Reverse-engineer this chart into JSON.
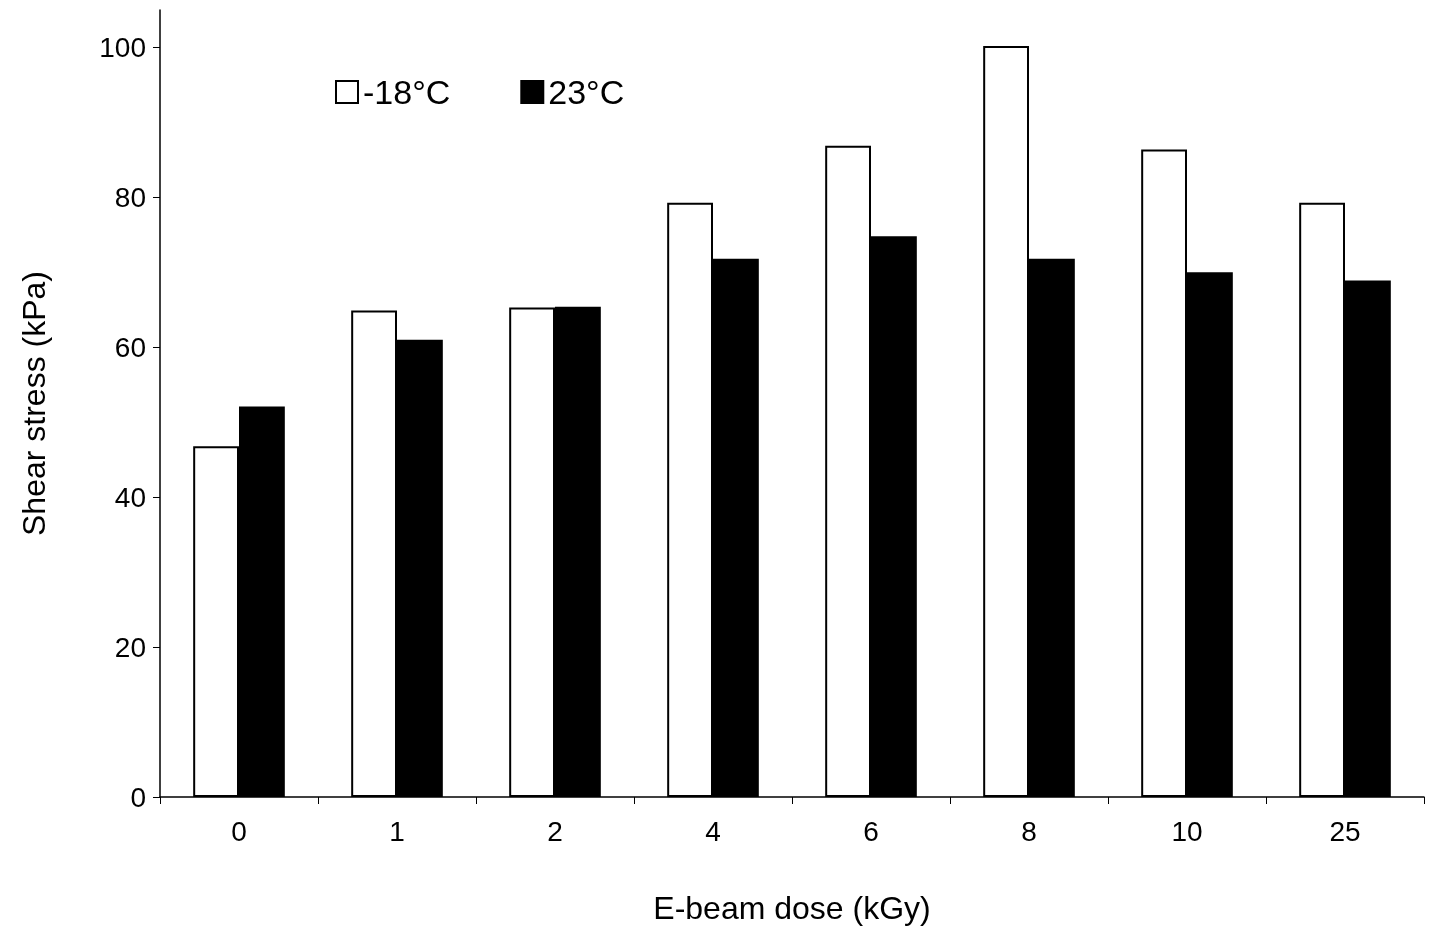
{
  "chart_data": {
    "type": "bar",
    "xlabel": "E-beam dose (kGy)",
    "ylabel": "Shear stress (kPa)",
    "categories": [
      "0",
      "1",
      "2",
      "4",
      "6",
      "8",
      "10",
      "25"
    ],
    "series": [
      {
        "name": "-18°C",
        "color": "#ffffff",
        "values": [
          46.8,
          64.9,
          65.3,
          79.3,
          86.9,
          100.2,
          86.4,
          79.3
        ]
      },
      {
        "name": "23°C",
        "color": "#000000",
        "values": [
          52.1,
          61.0,
          65.4,
          71.8,
          74.8,
          71.8,
          70.0,
          68.9
        ]
      }
    ],
    "ylim": [
      0,
      105
    ],
    "yticks": [
      0,
      20,
      40,
      60,
      80,
      100
    ],
    "grid": false,
    "legend": "top left"
  }
}
